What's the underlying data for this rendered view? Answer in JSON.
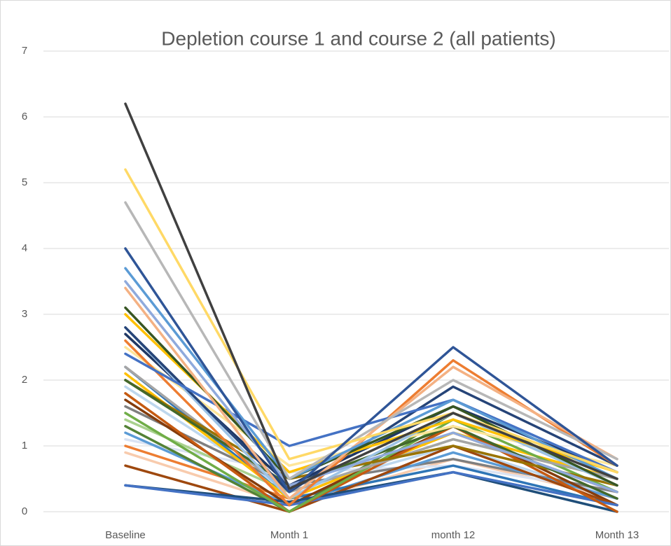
{
  "chart_data": {
    "type": "line",
    "title": "Depletion course 1 and course 2 (all patients)",
    "categories": [
      "Baseline",
      "Month 1",
      "month 12",
      "Month 13"
    ],
    "ylim": [
      0,
      7
    ],
    "yticks": [
      0,
      1,
      2,
      3,
      4,
      5,
      6,
      7
    ],
    "grid": true,
    "series": [
      {
        "color": "#f8cbad",
        "values": [
          0.9,
          0.1,
          0.8,
          0.2
        ]
      },
      {
        "color": "#dae3f3",
        "values": [
          1.1,
          0.6,
          0.7,
          0.3
        ]
      },
      {
        "color": "#bdd7ee",
        "values": [
          1.9,
          0.3,
          1.0,
          0.2
        ]
      },
      {
        "color": "#a9d18e",
        "values": [
          1.4,
          0.3,
          1.1,
          0.5
        ]
      },
      {
        "color": "#7f7f7f",
        "values": [
          1.6,
          0.4,
          0.8,
          0.3
        ]
      },
      {
        "color": "#ed7d31",
        "values": [
          1.0,
          0.2,
          1.2,
          0.3
        ]
      },
      {
        "color": "#5b9bd5",
        "values": [
          1.2,
          0.1,
          0.9,
          0.2
        ]
      },
      {
        "color": "#2e75b6",
        "values": [
          2.2,
          0.2,
          0.7,
          0.1
        ]
      },
      {
        "color": "#548235",
        "values": [
          1.3,
          0.0,
          1.5,
          0.4
        ]
      },
      {
        "color": "#ffc000",
        "values": [
          2.1,
          0.2,
          1.2,
          0.5
        ]
      },
      {
        "color": "#843c0c",
        "values": [
          1.7,
          0.1,
          1.3,
          0.1
        ]
      },
      {
        "color": "#9e480e",
        "values": [
          0.7,
          0.0,
          1.0,
          0.1
        ]
      },
      {
        "color": "#1f4e79",
        "values": [
          0.4,
          0.15,
          0.6,
          0.0
        ]
      },
      {
        "color": "#4472c4",
        "values": [
          0.4,
          0.1,
          0.6,
          0.1
        ]
      },
      {
        "color": "#c55a11",
        "values": [
          1.8,
          0.0,
          1.3,
          0.0
        ]
      },
      {
        "color": "#70ad47",
        "values": [
          1.5,
          0.0,
          1.4,
          0.3
        ]
      },
      {
        "color": "#a5a5a5",
        "values": [
          2.2,
          0.3,
          1.1,
          0.5
        ]
      },
      {
        "color": "#997300",
        "values": [
          2.0,
          0.5,
          1.0,
          0.4
        ]
      },
      {
        "color": "#43682b",
        "values": [
          2.0,
          0.4,
          1.3,
          0.2
        ]
      },
      {
        "color": "#ffe699",
        "values": [
          2.5,
          0.7,
          1.3,
          0.7
        ]
      },
      {
        "color": "#203864",
        "values": [
          2.7,
          0.4,
          1.6,
          0.6
        ]
      },
      {
        "color": "#9dc3e6",
        "values": [
          2.8,
          0.2,
          1.5,
          0.4
        ]
      },
      {
        "color": "#264478",
        "values": [
          2.8,
          0.3,
          1.9,
          0.7
        ]
      },
      {
        "color": "#ed7d31",
        "values": [
          2.6,
          0.1,
          2.3,
          0.7
        ]
      },
      {
        "color": "#4472c4",
        "values": [
          2.4,
          1.0,
          1.7,
          0.6
        ]
      },
      {
        "color": "#ffc000",
        "values": [
          3.0,
          0.6,
          1.4,
          0.6
        ]
      },
      {
        "color": "#375623",
        "values": [
          3.1,
          0.5,
          1.6,
          0.4
        ]
      },
      {
        "color": "#f4b183",
        "values": [
          3.4,
          0.2,
          2.2,
          0.8
        ]
      },
      {
        "color": "#8faadc",
        "values": [
          3.5,
          0.4,
          1.2,
          0.3
        ]
      },
      {
        "color": "#5b9bd5",
        "values": [
          3.7,
          0.5,
          1.7,
          0.5
        ]
      },
      {
        "color": "#b7b7b7",
        "values": [
          4.7,
          0.5,
          2.0,
          0.8
        ]
      },
      {
        "color": "#ffd966",
        "values": [
          5.2,
          0.8,
          1.5,
          0.6
        ]
      },
      {
        "color": "#2f5597",
        "values": [
          4.0,
          0.3,
          2.5,
          0.7
        ]
      },
      {
        "color": "#404040",
        "values": [
          6.2,
          0.35,
          1.5,
          0.5
        ]
      }
    ]
  }
}
